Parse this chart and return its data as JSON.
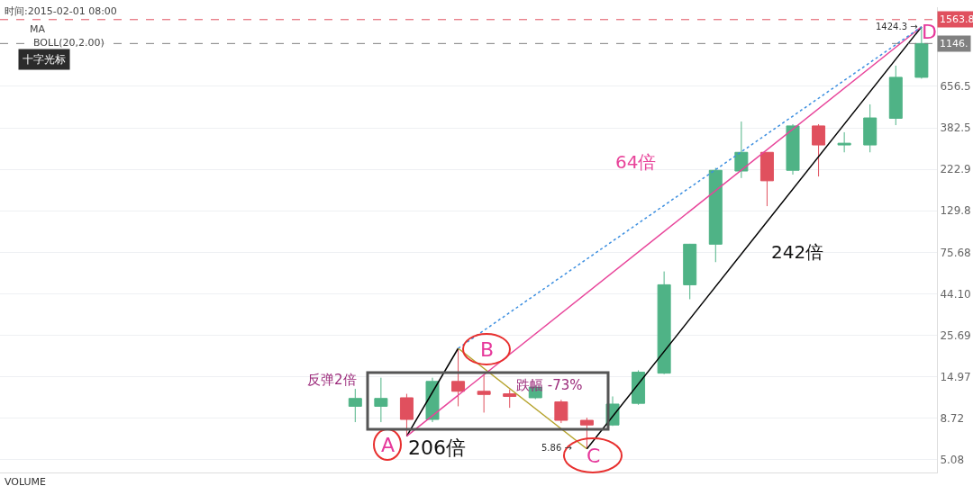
{
  "chart_data": {
    "type": "candlestick",
    "categories": [
      null,
      null,
      null,
      null,
      null,
      null,
      null,
      null,
      null,
      null,
      null,
      null,
      null,
      null,
      null,
      null,
      null,
      null,
      null,
      null,
      null,
      null,
      null
    ],
    "ohlc": [
      [
        10.2,
        12.8,
        8.3,
        11.3
      ],
      [
        10.2,
        14.8,
        8.3,
        11.3
      ],
      [
        11.4,
        12.0,
        6.91,
        8.6
      ],
      [
        8.6,
        14.8,
        8.3,
        14.1
      ],
      [
        14.1,
        21.7,
        10.2,
        12.4
      ],
      [
        12.4,
        15.3,
        9.4,
        11.9
      ],
      [
        12.0,
        12.7,
        10.0,
        11.6
      ],
      [
        11.4,
        13.4,
        11.2,
        13.1
      ],
      [
        10.8,
        11.1,
        8.2,
        8.5
      ],
      [
        8.5,
        8.8,
        5.86,
        8.0
      ],
      [
        8.0,
        11.6,
        7.9,
        10.5
      ],
      [
        10.6,
        16.3,
        10.4,
        15.9
      ],
      [
        15.7,
        59,
        15.5,
        49.6
      ],
      [
        49.6,
        84.5,
        41.1,
        84.1
      ],
      [
        84.1,
        227,
        66.6,
        220
      ],
      [
        218,
        415,
        199,
        278
      ],
      [
        278,
        278,
        138,
        192
      ],
      [
        220,
        401,
        208,
        392
      ],
      [
        392,
        401,
        203,
        306
      ],
      [
        306,
        361,
        278,
        313
      ],
      [
        306,
        519,
        278,
        435
      ],
      [
        433,
        859,
        396,
        738
      ],
      [
        738,
        1424.3,
        725,
        1146
      ]
    ],
    "colors": [
      "#4fb386",
      "#4fb386",
      "#e0505e",
      "#4fb386",
      "#e0505e",
      "#e0505e",
      "#e0505e",
      "#4fb386",
      "#e0505e",
      "#e0505e",
      "#4fb386",
      "#4fb386",
      "#4fb386",
      "#4fb386",
      "#4fb386",
      "#4fb386",
      "#e0505e",
      "#4fb386",
      "#e0505e",
      "#4fb386",
      "#4fb386",
      "#4fb386",
      "#4fb386"
    ],
    "series": [
      {
        "type": "line",
        "values": [
          null,
          null,
          6.91,
          null,
          21.7,
          null,
          null,
          null,
          null,
          null,
          null,
          null,
          null,
          null,
          null,
          null,
          null,
          null,
          null,
          null,
          null,
          null,
          null
        ],
        "color": "#000000"
      },
      {
        "type": "line",
        "values": [
          null,
          null,
          null,
          null,
          21.7,
          null,
          null,
          null,
          null,
          5.86,
          null,
          null,
          null,
          null,
          null,
          null,
          null,
          null,
          null,
          null,
          null,
          null,
          null
        ],
        "color": "#b5a22a"
      },
      {
        "type": "line",
        "values": [
          null,
          null,
          null,
          null,
          null,
          null,
          null,
          null,
          null,
          5.86,
          null,
          null,
          null,
          null,
          null,
          null,
          null,
          null,
          null,
          null,
          null,
          null,
          1424.3
        ],
        "color": "#000000"
      },
      {
        "type": "line",
        "values": [
          null,
          null,
          6.91,
          null,
          null,
          null,
          null,
          null,
          null,
          null,
          null,
          null,
          null,
          null,
          null,
          null,
          null,
          null,
          null,
          null,
          null,
          null,
          1424.3
        ],
        "color": "#e8449a"
      },
      {
        "type": "line",
        "values": [
          null,
          null,
          null,
          null,
          21.7,
          null,
          null,
          null,
          null,
          null,
          null,
          null,
          null,
          null,
          null,
          null,
          null,
          null,
          null,
          null,
          null,
          null,
          1424.3
        ],
        "color": "#3d8fe0",
        "line_style": "dotted"
      }
    ],
    "ylim": [
      4.31,
      1838
    ],
    "yticks": [
      5.08,
      8.72,
      14.97,
      25.69,
      {
        "value": 44.1,
        "label": "44.10"
      },
      75.68,
      129.8,
      222.9,
      382.5,
      656.5
    ],
    "log": true,
    "grid": "y",
    "tick_labels": "y",
    "marker": "none",
    "ref_lines": [
      {
        "axis": "y",
        "value": 1563.8,
        "label": "1563.8",
        "color": "#e0505e",
        "line_style": "dashed"
      },
      {
        "axis": "y",
        "value": 1146,
        "label": "1146.",
        "color": "#808080",
        "line_style": "dashed"
      }
    ],
    "annotations": [
      "A",
      "B",
      "C",
      "D",
      "1424.3 →",
      "5.86 →",
      "206倍",
      "64倍",
      "242倍",
      "反弹2倍",
      "跌幅 -73%",
      "时间:2015-02-01 08:00",
      "MA",
      "BOLL(20,2.00)",
      "十字光标",
      "VOLUME"
    ]
  }
}
